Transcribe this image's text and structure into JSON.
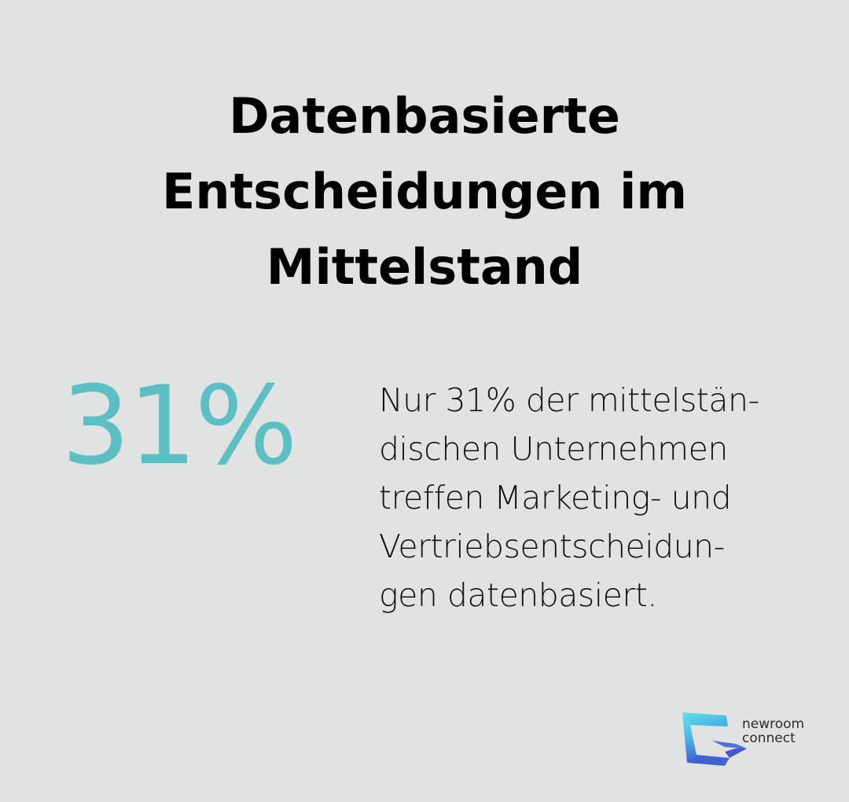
{
  "title": {
    "line1": "Datenbasierte",
    "line2": "Entscheidungen im",
    "line3": "Mittelstand"
  },
  "stat": {
    "value": "31%"
  },
  "description": {
    "lines": [
      "Nur 31% der mittelstän-",
      "dischen Unternehmen",
      "treffen Marketing- und",
      "Vertriebsentscheidun-",
      "gen datenbasiert."
    ]
  },
  "brand": {
    "name_line1": "newroom",
    "name_line2": "connect",
    "icon": "newroom-connect-logo-icon"
  },
  "colors": {
    "background": "#e1e3e2",
    "accent": "#5bbfc4",
    "text": "#000000",
    "logo_cyan": "#5fe3ea",
    "logo_blue": "#3f6fd1"
  }
}
